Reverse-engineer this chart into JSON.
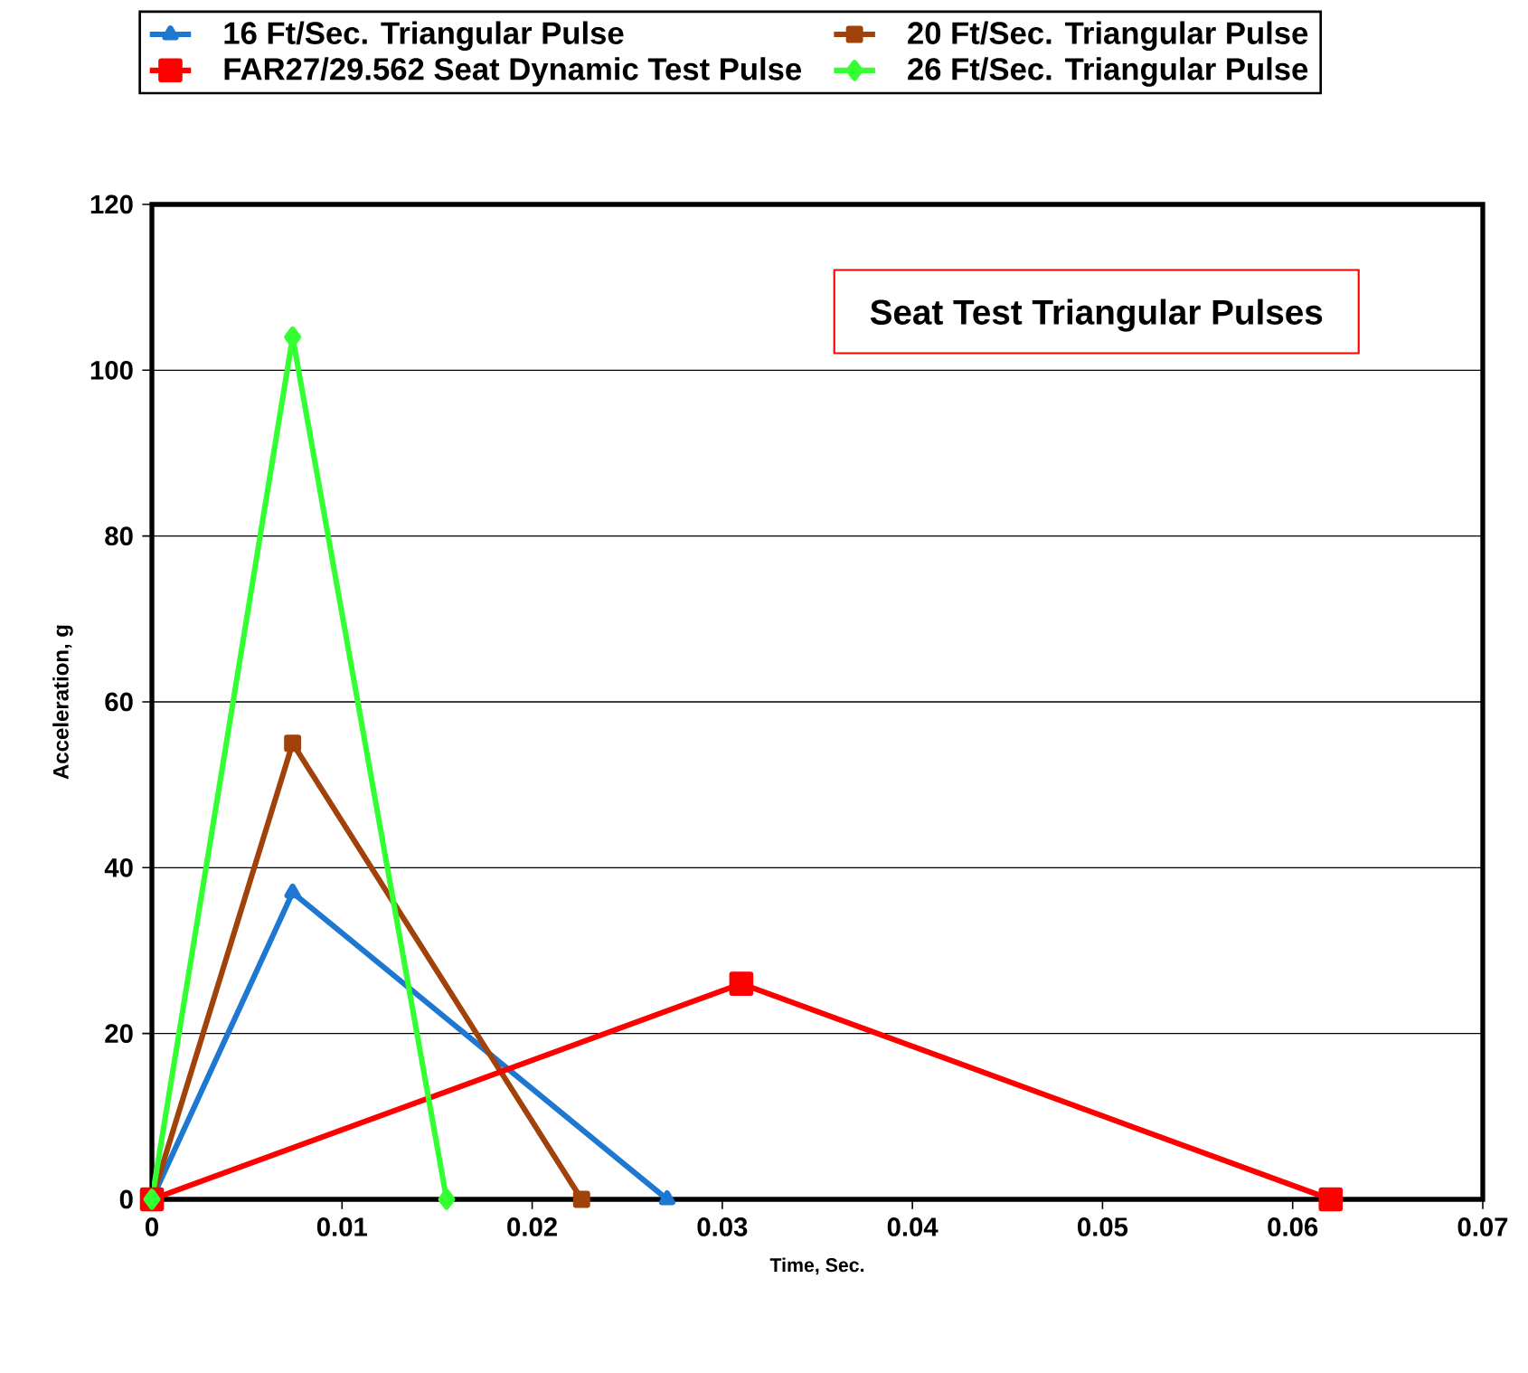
{
  "chart_data": {
    "type": "line",
    "xlabel": "Time, Sec.",
    "ylabel": "Acceleration, g",
    "xlim": [
      0,
      0.07
    ],
    "xticks": [
      0,
      0.01,
      0.02,
      0.03,
      0.04,
      0.05,
      0.06,
      0.07
    ],
    "ylim": [
      0,
      120
    ],
    "yticks": [
      0,
      20,
      40,
      60,
      80,
      100,
      120
    ],
    "grid": "y",
    "legend": "top",
    "line_style": "solid",
    "annotations": [
      "Seat Test Triangular Pulses"
    ],
    "series": [
      {
        "name": "16 Ft/Sec. Triangular Pulse",
        "color": "#1e78d2",
        "marker": "triangle",
        "x": [
          0,
          0.0074,
          0.0271
        ],
        "values": [
          0,
          37,
          0
        ]
      },
      {
        "name": "20 Ft/Sec. Triangular Pulse",
        "color": "#a0420a",
        "marker": "square",
        "x": [
          0,
          0.0074,
          0.0226
        ],
        "values": [
          0,
          55,
          0
        ]
      },
      {
        "name": "FAR27/29.562 Seat Dynamic Test Pulse",
        "color": "#ff0000",
        "marker": "square",
        "x": [
          0,
          0.031,
          0.062
        ],
        "values": [
          0,
          26,
          0
        ]
      },
      {
        "name": "26 Ft/Sec. Triangular Pulse",
        "color": "#33ff33",
        "marker": "diamond",
        "x": [
          0,
          0.0074,
          0.0155
        ],
        "values": [
          0,
          104,
          0
        ]
      }
    ]
  }
}
